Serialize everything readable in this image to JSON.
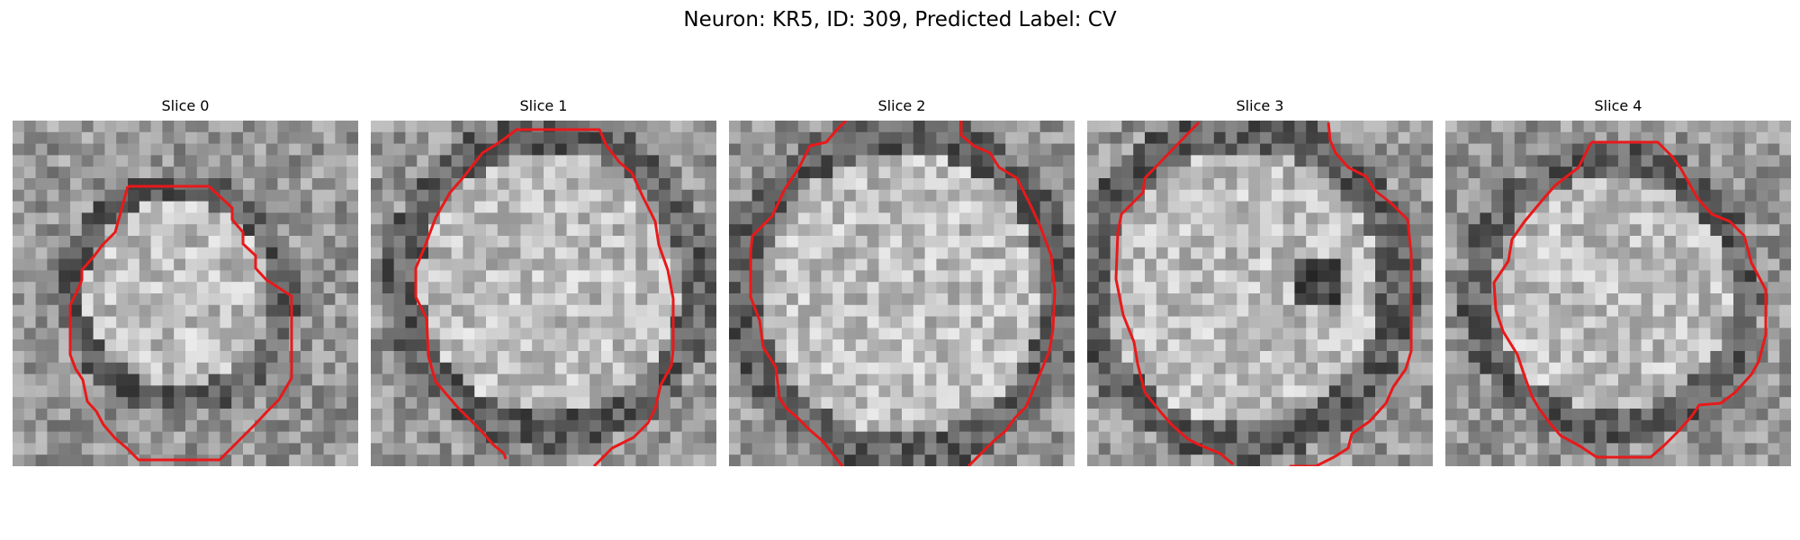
{
  "figure": {
    "title": "Neuron: KR5, ID: 309, Predicted Label: CV",
    "panels": [
      {
        "title": "Slice 0"
      },
      {
        "title": "Slice 1"
      },
      {
        "title": "Slice 2"
      },
      {
        "title": "Slice 3"
      },
      {
        "title": "Slice 4"
      }
    ],
    "grid_size": 30,
    "contour_color": "#e8191a",
    "colormap": "gray"
  }
}
